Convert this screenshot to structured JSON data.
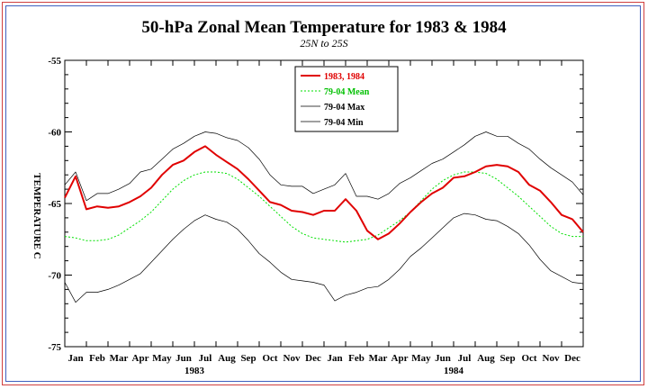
{
  "chart_data": {
    "type": "line",
    "title": "50-hPa Zonal Mean Temperature for 1983 & 1984",
    "subtitle": "25N to 25S",
    "ylabel": "TEMPERATURE C",
    "ylim": [
      -75,
      -55
    ],
    "yticks": [
      -55,
      -60,
      -65,
      -70,
      -75
    ],
    "month_labels": [
      "Jan",
      "Feb",
      "Mar",
      "Apr",
      "May",
      "Jun",
      "Jul",
      "Aug",
      "Sep",
      "Oct",
      "Nov",
      "Dec",
      "Jan",
      "Feb",
      "Mar",
      "Apr",
      "May",
      "Jun",
      "Jul",
      "Aug",
      "Sep",
      "Oct",
      "Nov",
      "Dec"
    ],
    "year_labels": [
      "1983",
      "1984"
    ],
    "x_unit": "month index (0 = Jan 1983, 24 = end of Dec 1984)",
    "x": [
      0,
      0.5,
      1,
      1.5,
      2,
      2.5,
      3,
      3.5,
      4,
      4.5,
      5,
      5.5,
      6,
      6.5,
      7,
      7.5,
      8,
      8.5,
      9,
      9.5,
      10,
      10.5,
      11,
      11.5,
      12,
      12.5,
      13,
      13.5,
      14,
      14.5,
      15,
      15.5,
      16,
      16.5,
      17,
      17.5,
      18,
      18.5,
      19,
      19.5,
      20,
      20.5,
      21,
      21.5,
      22,
      22.5,
      23,
      23.5,
      24
    ],
    "legend": [
      "1983, 1984",
      "79-04 Mean",
      "79-04 Max",
      "79-04 Min"
    ],
    "series": [
      {
        "name": "1983, 1984",
        "color": "#e00000",
        "values": [
          -64.6,
          -63.1,
          -65.4,
          -65.2,
          -65.3,
          -65.2,
          -64.9,
          -64.5,
          -63.9,
          -63.0,
          -62.3,
          -62.0,
          -61.4,
          -61.0,
          -61.6,
          -62.1,
          -62.6,
          -63.3,
          -64.1,
          -64.9,
          -65.1,
          -65.5,
          -65.6,
          -65.8,
          -65.5,
          -65.5,
          -64.7,
          -65.5,
          -66.9,
          -67.5,
          -67.1,
          -66.4,
          -65.6,
          -64.9,
          -64.3,
          -63.9,
          -63.2,
          -63.1,
          -62.8,
          -62.4,
          -62.3,
          -62.4,
          -62.8,
          -63.7,
          -64.1,
          -64.9,
          -65.8,
          -66.1,
          -67.0
        ]
      },
      {
        "name": "79-04 Mean",
        "color": "#00e000",
        "values": [
          -67.3,
          -67.4,
          -67.6,
          -67.6,
          -67.5,
          -67.2,
          -66.7,
          -66.2,
          -65.6,
          -64.8,
          -64.0,
          -63.4,
          -63.0,
          -62.8,
          -62.8,
          -62.9,
          -63.3,
          -63.9,
          -64.5,
          -65.2,
          -65.9,
          -66.6,
          -67.1,
          -67.4,
          -67.5,
          -67.6,
          -67.7,
          -67.6,
          -67.5,
          -67.2,
          -66.7,
          -66.2,
          -65.6,
          -64.8,
          -64.0,
          -63.4,
          -63.0,
          -62.8,
          -62.8,
          -62.9,
          -63.3,
          -63.9,
          -64.5,
          -65.2,
          -65.9,
          -66.6,
          -67.1,
          -67.3,
          -67.3
        ]
      },
      {
        "name": "79-04 Max",
        "color": "#000000",
        "values": [
          -63.7,
          -62.8,
          -64.8,
          -64.3,
          -64.3,
          -64.0,
          -63.6,
          -62.8,
          -62.6,
          -61.9,
          -61.2,
          -60.8,
          -60.3,
          -60.0,
          -60.1,
          -60.4,
          -60.6,
          -61.1,
          -61.9,
          -63.0,
          -63.7,
          -63.8,
          -63.8,
          -64.3,
          -64.0,
          -63.7,
          -62.9,
          -64.5,
          -64.5,
          -64.7,
          -64.3,
          -63.6,
          -63.2,
          -62.7,
          -62.2,
          -61.9,
          -61.4,
          -60.9,
          -60.3,
          -60.0,
          -60.3,
          -60.3,
          -60.8,
          -61.2,
          -61.9,
          -62.5,
          -63.0,
          -63.5,
          -64.4
        ]
      },
      {
        "name": "79-04 Min",
        "color": "#000000",
        "values": [
          -70.5,
          -71.9,
          -71.2,
          -71.2,
          -71.0,
          -70.7,
          -70.3,
          -69.9,
          -69.1,
          -68.3,
          -67.5,
          -66.8,
          -66.2,
          -65.8,
          -66.1,
          -66.3,
          -66.8,
          -67.6,
          -68.5,
          -69.1,
          -69.8,
          -70.3,
          -70.4,
          -70.5,
          -70.7,
          -71.8,
          -71.4,
          -71.2,
          -70.9,
          -70.8,
          -70.3,
          -69.6,
          -68.7,
          -68.1,
          -67.4,
          -66.7,
          -66.0,
          -65.7,
          -65.8,
          -66.1,
          -66.2,
          -66.6,
          -67.1,
          -67.9,
          -68.9,
          -69.7,
          -70.1,
          -70.5,
          -70.6
        ]
      }
    ]
  }
}
